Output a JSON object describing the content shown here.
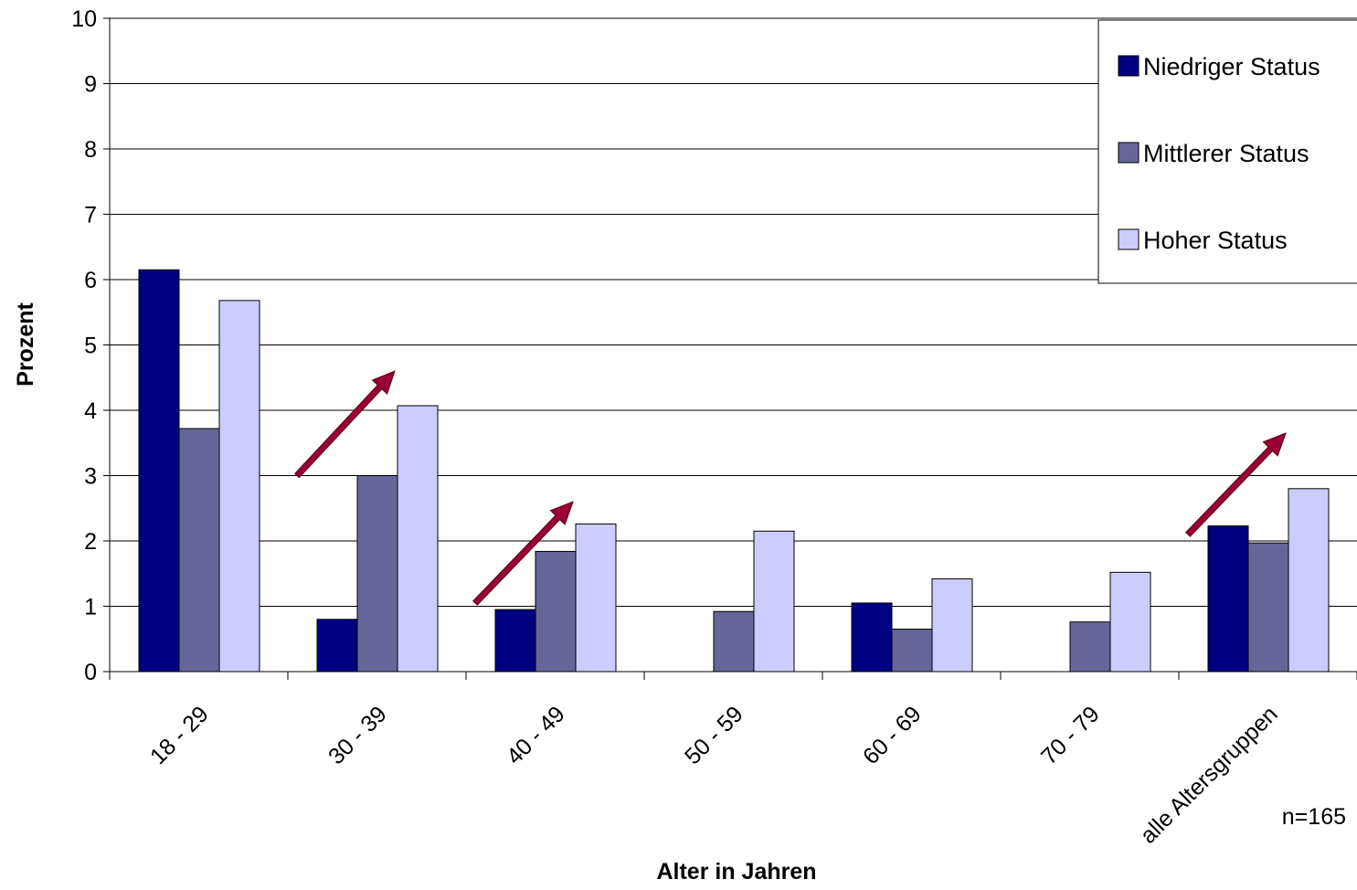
{
  "chart_data": {
    "type": "bar",
    "xlabel": "Alter in Jahren",
    "ylabel": "Prozent",
    "ylim": [
      0,
      10
    ],
    "yticks": [
      0,
      1,
      2,
      3,
      4,
      5,
      6,
      7,
      8,
      9,
      10
    ],
    "grid": true,
    "legend_position": "top-right",
    "categories": [
      "18 - 29",
      "30 - 39",
      "40 - 49",
      "50 - 59",
      "60 - 69",
      "70 - 79",
      "alle Altersgruppen"
    ],
    "series": [
      {
        "name": "Niedriger Status",
        "color": "#000080",
        "values": [
          6.15,
          0.8,
          0.95,
          0,
          1.05,
          0,
          2.23
        ]
      },
      {
        "name": "Mittlerer Status",
        "color": "#666699",
        "values": [
          3.72,
          3.0,
          1.84,
          0.92,
          0.65,
          0.76,
          1.97
        ]
      },
      {
        "name": "Hoher Status",
        "color": "#ccccff",
        "values": [
          5.68,
          4.07,
          2.26,
          2.15,
          1.42,
          1.52,
          2.8
        ]
      }
    ],
    "annotations": [
      {
        "type": "arrow",
        "color": "#990033",
        "category": "30 - 39",
        "from_y": 3.0,
        "to_y": 4.6
      },
      {
        "type": "arrow",
        "color": "#990033",
        "category": "40 - 49",
        "from_y": 1.05,
        "to_y": 2.6
      },
      {
        "type": "arrow",
        "color": "#990033",
        "category": "alle Altersgruppen",
        "from_y": 2.1,
        "to_y": 3.65
      }
    ],
    "note": "n=165"
  }
}
